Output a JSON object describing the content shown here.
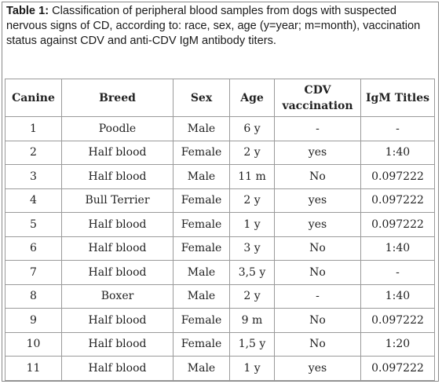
{
  "caption": {
    "label": "Table 1:",
    "text": "Classification of peripheral blood samples from dogs with suspected nervous signs of CD, according to: race, sex, age (y=year; m=month), vaccination status against CDV and anti-CDV IgM antibody titers."
  },
  "table": {
    "headers": [
      "Canine",
      "Breed",
      "Sex",
      "Age",
      "CDV vaccination",
      "IgM Titles"
    ],
    "rows": [
      [
        "1",
        "Poodle",
        "Male",
        "6 y",
        "-",
        "-"
      ],
      [
        "2",
        "Half blood",
        "Female",
        "2 y",
        "yes",
        "1:40"
      ],
      [
        "3",
        "Half blood",
        "Male",
        "11 m",
        "No",
        "0.097222"
      ],
      [
        "4",
        "Bull Terrier",
        "Female",
        "2 y",
        "yes",
        "0.097222"
      ],
      [
        "5",
        "Half blood",
        "Female",
        "1 y",
        "yes",
        "0.097222"
      ],
      [
        "6",
        "Half blood",
        "Female",
        "3 y",
        "No",
        "1:40"
      ],
      [
        "7",
        "Half blood",
        "Male",
        "3,5 y",
        "No",
        "-"
      ],
      [
        "8",
        "Boxer",
        "Male",
        "2 y",
        "-",
        "1:40"
      ],
      [
        "9",
        "Half blood",
        "Female",
        "9 m",
        "No",
        "0.097222"
      ],
      [
        "10",
        "Half blood",
        "Female",
        "1,5 y",
        "No",
        "1:20"
      ],
      [
        "11",
        "Half blood",
        "Male",
        "1 y",
        "yes",
        "0.097222"
      ]
    ]
  }
}
